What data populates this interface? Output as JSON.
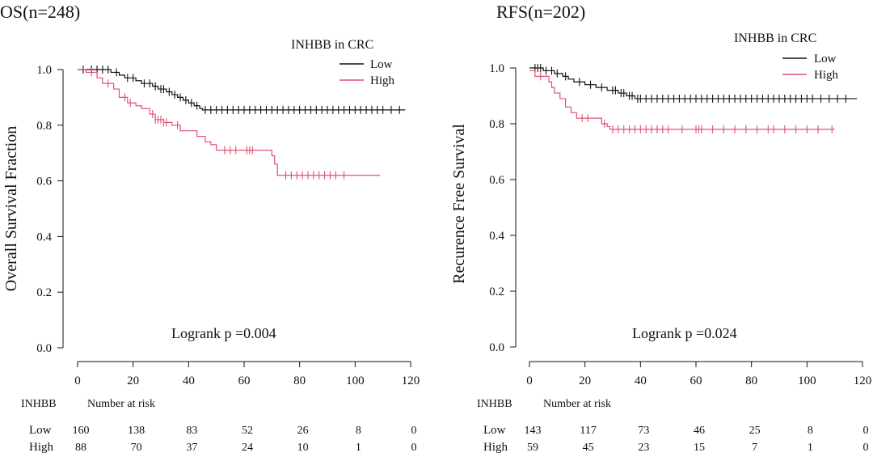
{
  "chart_data": [
    {
      "type": "line",
      "title": "OS(n=248)",
      "ylabel": "Overall Survival Fraction",
      "xlabel": "",
      "xlim": [
        0,
        120
      ],
      "ylim": [
        0,
        1.0
      ],
      "xticks": [
        0,
        20,
        40,
        60,
        80,
        100,
        120
      ],
      "yticks": [
        0.0,
        0.2,
        0.4,
        0.6,
        0.8,
        1.0
      ],
      "ytick_labels": [
        "0.0",
        "0.2",
        "0.4",
        "0.6",
        "0.8",
        "1.0"
      ],
      "grid": false,
      "legend": {
        "title": "INHBB in CRC",
        "placement": "top-right"
      },
      "annotation": "Logrank p =0.004",
      "series": [
        {
          "name": "Low",
          "color": "#111111",
          "steps": [
            [
              0,
              1.0
            ],
            [
              12,
              0.99
            ],
            [
              15,
              0.98
            ],
            [
              17,
              0.97
            ],
            [
              21,
              0.96
            ],
            [
              23,
              0.95
            ],
            [
              27,
              0.94
            ],
            [
              29,
              0.93
            ],
            [
              32,
              0.92
            ],
            [
              34,
              0.91
            ],
            [
              36,
              0.9
            ],
            [
              38,
              0.89
            ],
            [
              40,
              0.88
            ],
            [
              42,
              0.87
            ],
            [
              44,
              0.86
            ],
            [
              45,
              0.855
            ],
            [
              118,
              0.855
            ]
          ],
          "censor": [
            2,
            5,
            7,
            9,
            11,
            14,
            18,
            20,
            24,
            26,
            28,
            30,
            31,
            33,
            35,
            37,
            39,
            41,
            43,
            46,
            48,
            50,
            52,
            54,
            56,
            58,
            60,
            62,
            64,
            66,
            68,
            70,
            72,
            74,
            76,
            78,
            80,
            82,
            84,
            86,
            88,
            90,
            92,
            94,
            96,
            98,
            100,
            102,
            104,
            106,
            108,
            110,
            113,
            116
          ]
        },
        {
          "name": "High",
          "color": "#e05070",
          "steps": [
            [
              0,
              1.0
            ],
            [
              3,
              0.99
            ],
            [
              7,
              0.97
            ],
            [
              9,
              0.95
            ],
            [
              13,
              0.93
            ],
            [
              15,
              0.9
            ],
            [
              18,
              0.88
            ],
            [
              21,
              0.87
            ],
            [
              23,
              0.86
            ],
            [
              26,
              0.84
            ],
            [
              28,
              0.82
            ],
            [
              31,
              0.81
            ],
            [
              34,
              0.8
            ],
            [
              37,
              0.78
            ],
            [
              43,
              0.76
            ],
            [
              46,
              0.74
            ],
            [
              48,
              0.73
            ],
            [
              50,
              0.71
            ],
            [
              70,
              0.69
            ],
            [
              71,
              0.66
            ],
            [
              72,
              0.62
            ],
            [
              109,
              0.62
            ]
          ],
          "censor": [
            5,
            11,
            17,
            19,
            27,
            28,
            29,
            30,
            31,
            32,
            36,
            53,
            55,
            57,
            61,
            62,
            63,
            75,
            77,
            79,
            81,
            83,
            85,
            87,
            89,
            91,
            93,
            96
          ]
        }
      ],
      "risk_table": {
        "header_label": "INHBB",
        "header_title": "Number at risk",
        "times": [
          0,
          20,
          40,
          60,
          80,
          100,
          120
        ],
        "rows": [
          {
            "label": "Low",
            "values": [
              "160",
              "138",
              "83",
              "52",
              "26",
              "8",
              "0"
            ]
          },
          {
            "label": "High",
            "values": [
              "88",
              "70",
              "37",
              "24",
              "10",
              "1",
              "0"
            ]
          }
        ]
      }
    },
    {
      "type": "line",
      "title": "RFS(n=202)",
      "ylabel": "Recurence Free Survival",
      "xlabel": "",
      "xlim": [
        0,
        120
      ],
      "ylim": [
        0,
        1.0
      ],
      "xticks": [
        0,
        20,
        40,
        60,
        80,
        100,
        120
      ],
      "yticks": [
        0.0,
        0.2,
        0.4,
        0.6,
        0.8,
        1.0
      ],
      "ytick_labels": [
        "0.0",
        "0.2",
        "0.4",
        "0.6",
        "0.8",
        "1.0"
      ],
      "grid": false,
      "legend": {
        "title": "INHBB in CRC",
        "placement": "top-right"
      },
      "annotation": "Logrank p =0.024",
      "series": [
        {
          "name": "Low",
          "color": "#111111",
          "steps": [
            [
              0,
              1.0
            ],
            [
              5,
              0.99
            ],
            [
              9,
              0.98
            ],
            [
              12,
              0.97
            ],
            [
              14,
              0.96
            ],
            [
              16,
              0.95
            ],
            [
              20,
              0.94
            ],
            [
              24,
              0.93
            ],
            [
              28,
              0.92
            ],
            [
              32,
              0.91
            ],
            [
              35,
              0.9
            ],
            [
              38,
              0.89
            ],
            [
              118,
              0.89
            ]
          ],
          "censor": [
            2,
            3,
            4,
            6,
            8,
            10,
            13,
            18,
            22,
            26,
            30,
            31,
            33,
            34,
            36,
            37,
            39,
            40,
            42,
            44,
            46,
            48,
            50,
            52,
            54,
            56,
            58,
            60,
            62,
            64,
            66,
            68,
            70,
            72,
            74,
            76,
            78,
            80,
            82,
            84,
            86,
            88,
            90,
            92,
            94,
            96,
            98,
            100,
            102,
            105,
            108,
            111,
            114
          ]
        },
        {
          "name": "High",
          "color": "#e05070",
          "steps": [
            [
              0,
              0.99
            ],
            [
              2,
              0.97
            ],
            [
              7,
              0.95
            ],
            [
              8,
              0.93
            ],
            [
              9,
              0.91
            ],
            [
              11,
              0.89
            ],
            [
              13,
              0.86
            ],
            [
              15,
              0.84
            ],
            [
              17,
              0.82
            ],
            [
              26,
              0.8
            ],
            [
              28,
              0.79
            ],
            [
              29,
              0.78
            ],
            [
              110,
              0.78
            ]
          ],
          "censor": [
            4,
            19,
            21,
            27,
            30,
            32,
            34,
            36,
            38,
            40,
            42,
            44,
            46,
            48,
            50,
            55,
            60,
            61,
            62,
            66,
            70,
            74,
            78,
            82,
            86,
            88,
            92,
            96,
            100,
            104,
            109
          ]
        }
      ],
      "risk_table": {
        "header_label": "INHBB",
        "header_title": "Number at risk",
        "times": [
          0,
          20,
          40,
          60,
          80,
          100,
          120
        ],
        "rows": [
          {
            "label": "Low",
            "values": [
              "143",
              "117",
              "73",
              "46",
              "25",
              "8",
              "0"
            ]
          },
          {
            "label": "High",
            "values": [
              "59",
              "45",
              "23",
              "15",
              "7",
              "1",
              "0"
            ]
          }
        ]
      }
    }
  ]
}
